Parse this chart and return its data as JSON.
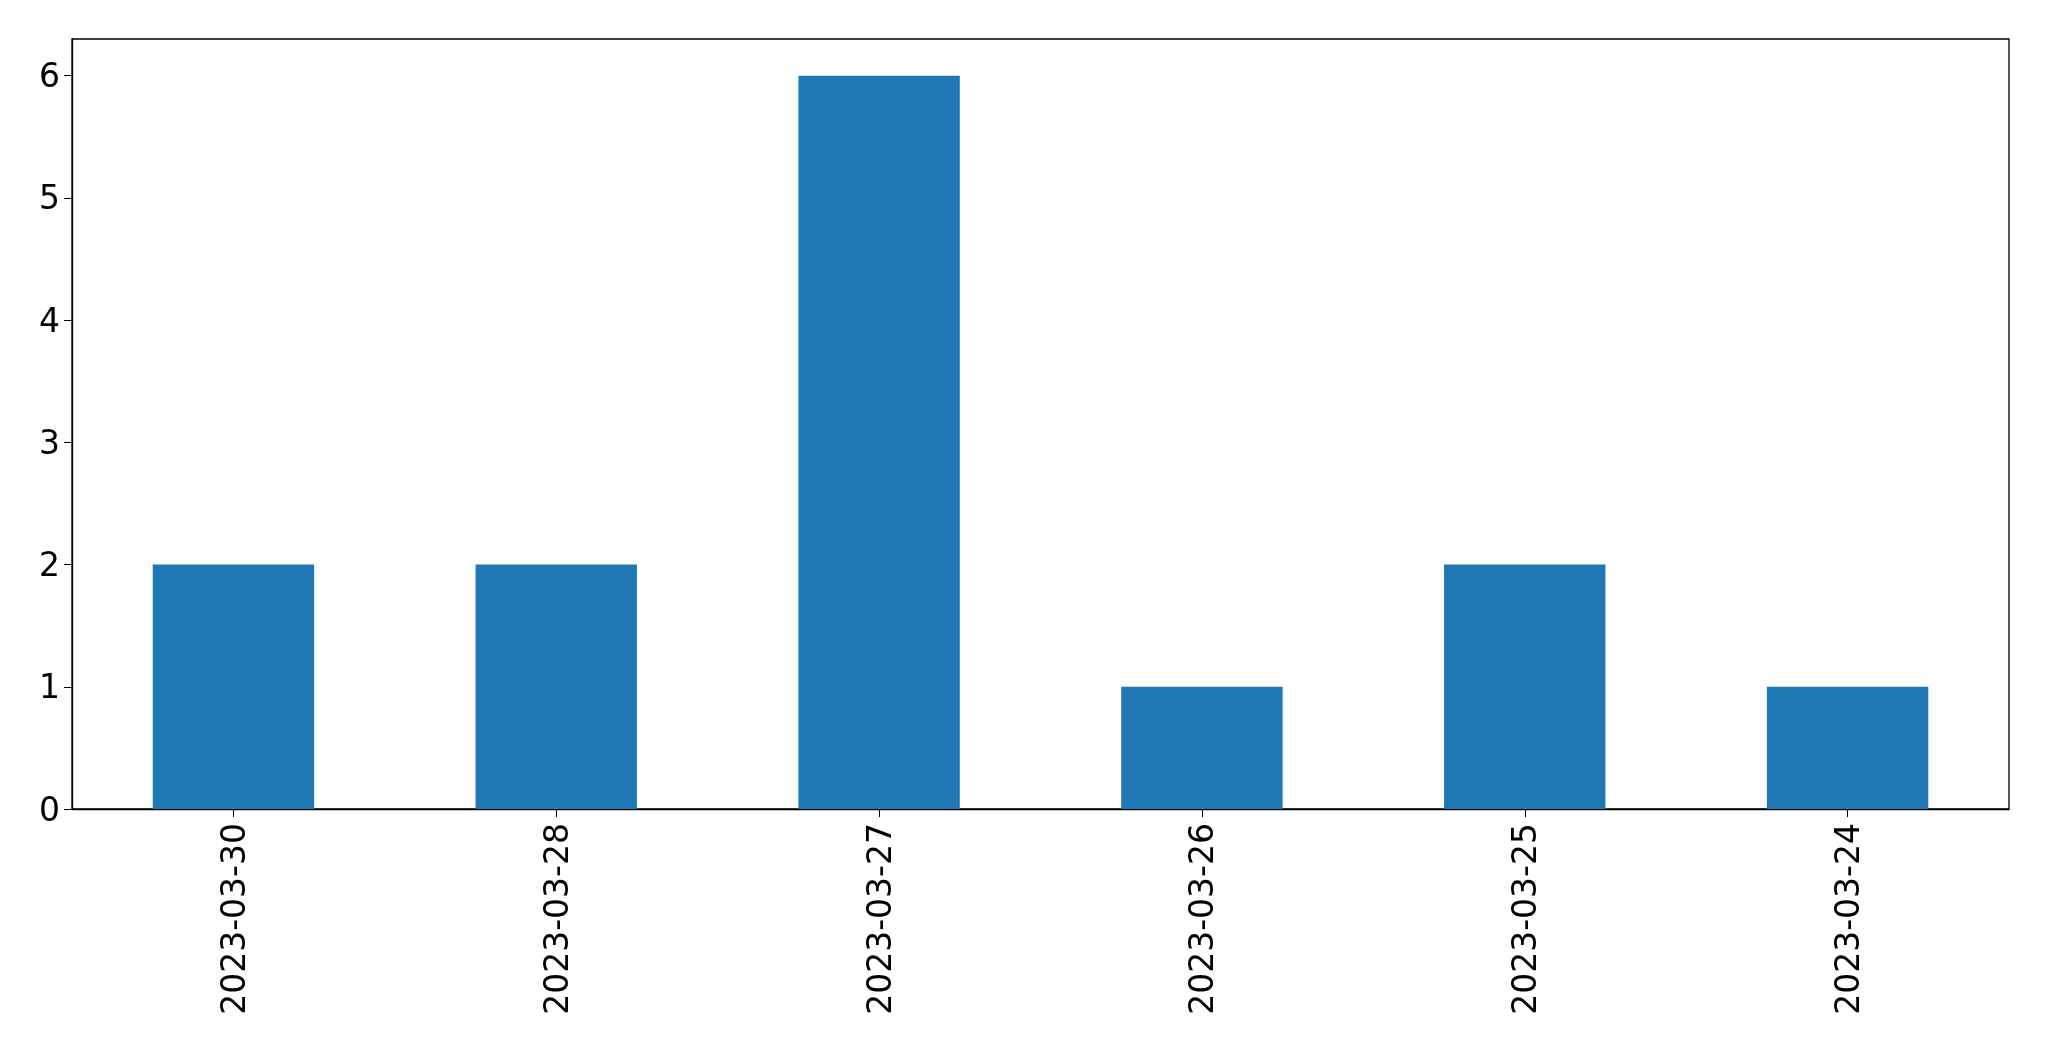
{
  "chart_data": {
    "type": "bar",
    "categories": [
      "2023-03-30",
      "2023-03-28",
      "2023-03-27",
      "2023-03-26",
      "2023-03-25",
      "2023-03-24"
    ],
    "values": [
      2,
      2,
      6,
      1,
      2,
      1
    ],
    "color": "#1f77b4",
    "ylim": [
      0,
      6.3
    ],
    "yticks": [
      0,
      1,
      2,
      3,
      4,
      5,
      6
    ],
    "grid": false
  }
}
